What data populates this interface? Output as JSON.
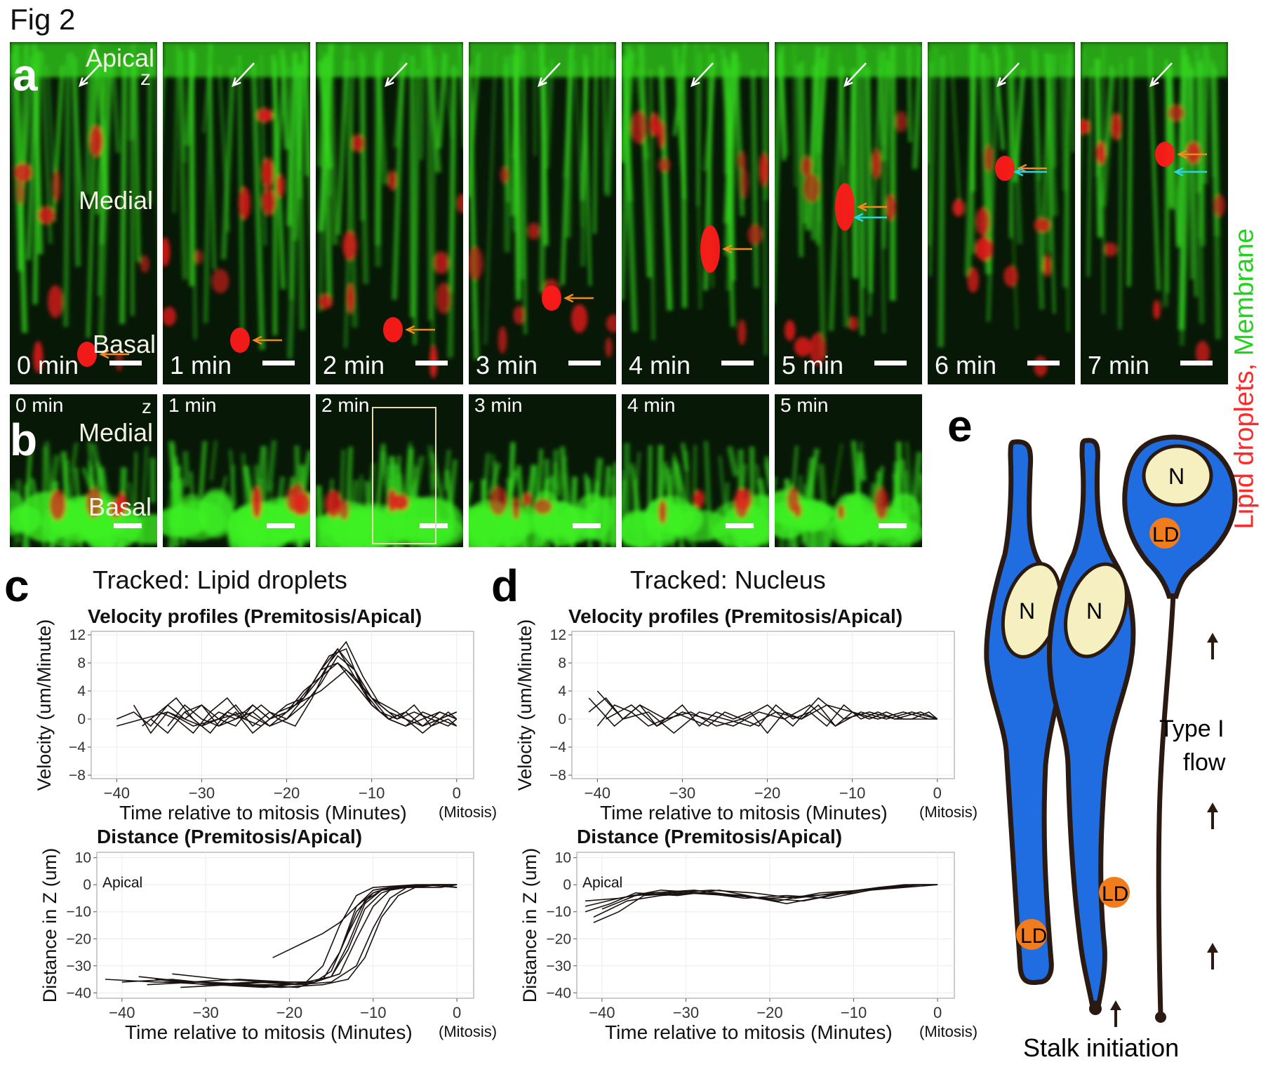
{
  "figure_title": "Fig 2",
  "panel_letters": {
    "a": "a",
    "b": "b",
    "c": "c",
    "d": "d",
    "e": "e"
  },
  "panel_a": {
    "labels": {
      "apical": "Apical",
      "z": "z",
      "medial": "Medial",
      "basal": "Basal"
    },
    "times": [
      "0 min",
      "1 min",
      "2 min",
      "3 min",
      "4 min",
      "5 min",
      "6 min",
      "7 min"
    ],
    "side_label": {
      "red": "Lipid droplets,",
      "green": "Membrane"
    },
    "colors": {
      "lipid": "#ff1a1a",
      "membrane": "#2fdc1e",
      "orange_arrow": "#f08a1c",
      "cyan_arrow": "#2ad4e6",
      "white_arrow": "#ffffff"
    }
  },
  "panel_b": {
    "labels": {
      "z": "z",
      "medial": "Medial",
      "basal": "Basal"
    },
    "times": [
      "0 min",
      "1 min",
      "2 min",
      "3 min",
      "4 min",
      "5 min"
    ]
  },
  "panel_c": {
    "tracked": "Tracked: Lipid droplets"
  },
  "panel_d": {
    "tracked": "Tracked: Nucleus"
  },
  "chart_data": [
    {
      "id": "c-velocity",
      "type": "line",
      "title": "Velocity profiles (Premitosis/Apical)",
      "xlabel": "Time relative to mitosis (Minutes)",
      "xlabel_suffix": "(Mitosis)",
      "ylabel": "Velocity (um/Minute)",
      "xlim": [
        -43,
        2
      ],
      "ylim": [
        -8.5,
        12.5
      ],
      "xticks": [
        -40,
        -30,
        -20,
        -10,
        0
      ],
      "yticks": [
        -8,
        -4,
        0,
        4,
        8,
        12
      ],
      "series": [
        {
          "x": [
            -40,
            -38,
            -36,
            -34,
            -32,
            -30,
            -28,
            -26,
            -24,
            -22,
            -20,
            -18,
            -16,
            -14,
            -12,
            -10,
            -8,
            -6,
            -4,
            -2,
            0
          ],
          "values": [
            0,
            1,
            -1,
            2,
            0,
            -1,
            1,
            0,
            2,
            0,
            1,
            3,
            7,
            10,
            6,
            2,
            0,
            1,
            -1,
            0,
            1
          ]
        },
        {
          "x": [
            -38,
            -36,
            -34,
            -32,
            -30,
            -28,
            -26,
            -24,
            -22,
            -20,
            -18,
            -16,
            -14,
            -12,
            -10,
            -8,
            -6,
            -4,
            -2,
            0
          ],
          "values": [
            2,
            -2,
            1,
            0,
            2,
            -1,
            0,
            1,
            -1,
            0,
            2,
            5,
            9,
            7,
            3,
            1,
            0,
            -1,
            1,
            0
          ]
        },
        {
          "x": [
            -37,
            -35,
            -33,
            -31,
            -29,
            -27,
            -25,
            -23,
            -21,
            -19,
            -17,
            -15,
            -13,
            -11,
            -9,
            -7,
            -5,
            -3,
            -1,
            0
          ],
          "values": [
            -1,
            1,
            3,
            0,
            -2,
            1,
            0,
            2,
            0,
            -1,
            3,
            8,
            11,
            6,
            2,
            0,
            1,
            0,
            -1,
            0
          ]
        },
        {
          "x": [
            -36,
            -34,
            -32,
            -30,
            -28,
            -26,
            -24,
            -22,
            -20,
            -18,
            -16,
            -14,
            -12,
            -10,
            -8,
            -6,
            -4,
            -2,
            0
          ],
          "values": [
            0,
            -2,
            1,
            2,
            0,
            -1,
            2,
            0,
            1,
            4,
            6,
            8,
            5,
            2,
            0,
            -1,
            0,
            1,
            0
          ]
        },
        {
          "x": [
            -35,
            -33,
            -31,
            -29,
            -27,
            -25,
            -23,
            -21,
            -19,
            -17,
            -15,
            -13,
            -11,
            -9,
            -7,
            -5,
            -3,
            -1,
            0
          ],
          "values": [
            1,
            0,
            -2,
            1,
            3,
            0,
            -1,
            1,
            2,
            5,
            9,
            10,
            4,
            1,
            0,
            2,
            -1,
            0,
            -1
          ]
        },
        {
          "x": [
            -34,
            -32,
            -30,
            -28,
            -26,
            -24,
            -22,
            -20,
            -18,
            -16,
            -14,
            -12,
            -10,
            -8,
            -6,
            -4,
            -2,
            0
          ],
          "values": [
            -1,
            2,
            0,
            -1,
            1,
            -2,
            0,
            2,
            3,
            7,
            8,
            6,
            3,
            0,
            1,
            -1,
            0,
            1
          ]
        },
        {
          "x": [
            -40,
            -37,
            -34,
            -31,
            -28,
            -25,
            -22,
            -19,
            -16,
            -13,
            -10,
            -7,
            -4,
            -1,
            0
          ],
          "values": [
            -1,
            0,
            1,
            -1,
            0,
            1,
            -1,
            2,
            4,
            7,
            3,
            1,
            -2,
            1,
            0
          ]
        },
        {
          "x": [
            -32,
            -30,
            -28,
            -26,
            -24,
            -22,
            -20,
            -18,
            -16,
            -14,
            -12,
            -10,
            -8,
            -6,
            -4,
            -2,
            0
          ],
          "values": [
            1,
            -1,
            0,
            2,
            -1,
            1,
            0,
            3,
            6,
            10,
            7,
            2,
            0,
            -1,
            1,
            0,
            -1
          ]
        }
      ]
    },
    {
      "id": "c-distance",
      "type": "line",
      "title": "Distance (Premitosis/Apical)",
      "annotation": "Apical",
      "xlabel": "Time relative to mitosis (Minutes)",
      "xlabel_suffix": "(Mitosis)",
      "ylabel": "Distance in Z (um)",
      "xlim": [
        -43,
        2
      ],
      "ylim": [
        -42,
        12
      ],
      "xticks": [
        -40,
        -30,
        -20,
        -10,
        0
      ],
      "yticks": [
        -40,
        -30,
        -20,
        -10,
        0,
        10
      ],
      "series": [
        {
          "x": [
            -42,
            -36,
            -30,
            -24,
            -20,
            -18,
            -16,
            -14,
            -12,
            -10,
            -5,
            0
          ],
          "values": [
            -35,
            -36,
            -36,
            -37,
            -37,
            -36,
            -30,
            -15,
            -4,
            -1,
            0,
            0
          ]
        },
        {
          "x": [
            -40,
            -34,
            -28,
            -22,
            -18,
            -16,
            -14,
            -12,
            -10,
            -8,
            -4,
            0
          ],
          "values": [
            -36,
            -35,
            -37,
            -36,
            -37,
            -35,
            -25,
            -8,
            -2,
            -1,
            0,
            -1
          ]
        },
        {
          "x": [
            -38,
            -32,
            -26,
            -20,
            -17,
            -15,
            -13,
            -11,
            -9,
            -6,
            -2,
            0
          ],
          "values": [
            -34,
            -36,
            -35,
            -36,
            -36,
            -32,
            -18,
            -6,
            -2,
            -1,
            0,
            0
          ]
        },
        {
          "x": [
            -37,
            -31,
            -25,
            -19,
            -16,
            -14,
            -12,
            -10,
            -8,
            -4,
            0
          ],
          "values": [
            -37,
            -36,
            -37,
            -38,
            -35,
            -25,
            -10,
            -3,
            -1,
            0,
            -1
          ]
        },
        {
          "x": [
            -36,
            -30,
            -24,
            -18,
            -15,
            -13,
            -11,
            -9,
            -7,
            -3,
            0
          ],
          "values": [
            -35,
            -37,
            -36,
            -37,
            -34,
            -24,
            -9,
            -3,
            -1,
            0,
            0
          ]
        },
        {
          "x": [
            -35,
            -29,
            -23,
            -17,
            -14,
            -12,
            -10,
            -8,
            -6,
            -2,
            0
          ],
          "values": [
            -36,
            -37,
            -38,
            -36,
            -33,
            -20,
            -8,
            -2,
            -1,
            -1,
            0
          ]
        },
        {
          "x": [
            -34,
            -28,
            -22,
            -18,
            -15,
            -13,
            -11,
            -9,
            -7,
            -3,
            0
          ],
          "values": [
            -33,
            -35,
            -36,
            -36,
            -34,
            -22,
            -7,
            -2,
            -1,
            0,
            0
          ]
        },
        {
          "x": [
            -22,
            -20,
            -18,
            -16,
            -14,
            -12,
            -10,
            -8,
            -5,
            0
          ],
          "values": [
            -27,
            -24,
            -21,
            -18,
            -14,
            -8,
            -3,
            -1,
            0,
            0
          ]
        },
        {
          "x": [
            -33,
            -27,
            -21,
            -16,
            -13,
            -11,
            -9,
            -7,
            -5,
            -2,
            0
          ],
          "values": [
            -38,
            -37,
            -38,
            -37,
            -35,
            -27,
            -12,
            -4,
            -1,
            0,
            -1
          ]
        },
        {
          "x": [
            -30,
            -24,
            -19,
            -15,
            -12,
            -10,
            -8,
            -6,
            -3,
            0
          ],
          "values": [
            -37,
            -36,
            -37,
            -36,
            -30,
            -16,
            -5,
            -1,
            0,
            0
          ]
        }
      ]
    },
    {
      "id": "d-velocity",
      "type": "line",
      "title": "Velocity profiles (Premitosis/Apical)",
      "xlabel": "Time relative to mitosis (Minutes)",
      "xlabel_suffix": "(Mitosis)",
      "ylabel": "Velocity (um/Minute)",
      "xlim": [
        -43,
        2
      ],
      "ylim": [
        -8.5,
        12.5
      ],
      "xticks": [
        -40,
        -30,
        -20,
        -10,
        0
      ],
      "yticks": [
        -8,
        -4,
        0,
        4,
        8,
        12
      ],
      "series": [
        {
          "x": [
            -41,
            -39,
            -37,
            -35,
            -33,
            -31,
            -29,
            -27,
            -25,
            -23,
            -21,
            -19,
            -17,
            -15,
            -13,
            -11,
            -9,
            -7,
            -5,
            -3,
            -1,
            0
          ],
          "values": [
            1,
            3,
            0,
            2,
            -1,
            1,
            0,
            -1,
            1,
            0,
            -1,
            2,
            0,
            1,
            -1,
            2,
            0,
            1,
            0,
            0,
            1,
            0
          ]
        },
        {
          "x": [
            -40,
            -38,
            -36,
            -34,
            -32,
            -30,
            -28,
            -26,
            -24,
            -22,
            -20,
            -18,
            -16,
            -14,
            -12,
            -10,
            -8,
            -6,
            -4,
            -2,
            0
          ],
          "values": [
            -1,
            2,
            1,
            -1,
            0,
            2,
            -1,
            1,
            0,
            1,
            -2,
            1,
            0,
            2,
            -1,
            1,
            0,
            1,
            0,
            0,
            0
          ]
        },
        {
          "x": [
            -41,
            -38,
            -35,
            -32,
            -29,
            -26,
            -23,
            -20,
            -17,
            -14,
            -11,
            -8,
            -5,
            -2,
            0
          ],
          "values": [
            3,
            -1,
            2,
            0,
            1,
            -1,
            0,
            2,
            -1,
            3,
            0,
            1,
            0,
            1,
            0
          ]
        },
        {
          "x": [
            -39,
            -36,
            -33,
            -30,
            -27,
            -24,
            -21,
            -18,
            -15,
            -12,
            -9,
            -6,
            -3,
            0
          ],
          "values": [
            0,
            2,
            -1,
            1,
            0,
            -1,
            1,
            0,
            2,
            -1,
            1,
            0,
            1,
            0
          ]
        },
        {
          "x": [
            -40,
            -37,
            -34,
            -31,
            -28,
            -25,
            -22,
            -19,
            -16,
            -13,
            -10,
            -7,
            -4,
            -1,
            0
          ],
          "values": [
            4,
            0,
            1,
            -2,
            1,
            0,
            -1,
            1,
            0,
            2,
            1,
            0,
            1,
            0,
            0
          ]
        }
      ]
    },
    {
      "id": "d-distance",
      "type": "line",
      "title": "Distance (Premitosis/Apical)",
      "annotation": "Apical",
      "xlabel": "Time relative to mitosis (Minutes)",
      "xlabel_suffix": "(Mitosis)",
      "ylabel": "Distance in Z (um)",
      "xlim": [
        -43,
        2
      ],
      "ylim": [
        -42,
        12
      ],
      "xticks": [
        -40,
        -30,
        -20,
        -10,
        0
      ],
      "yticks": [
        -40,
        -30,
        -20,
        -10,
        0,
        10
      ],
      "series": [
        {
          "x": [
            -41,
            -38,
            -35,
            -30,
            -25,
            -20,
            -15,
            -10,
            -6,
            -3,
            0
          ],
          "values": [
            -14,
            -10,
            -4,
            -3,
            -4,
            -5,
            -4,
            -3,
            -1,
            0,
            0
          ]
        },
        {
          "x": [
            -42,
            -39,
            -36,
            -31,
            -26,
            -21,
            -16,
            -11,
            -7,
            -4,
            0
          ],
          "values": [
            -10,
            -7,
            -3,
            -4,
            -2,
            -5,
            -6,
            -3,
            -1,
            0,
            0
          ]
        },
        {
          "x": [
            -42,
            -38,
            -34,
            -29,
            -24,
            -19,
            -14,
            -9,
            -5,
            -2,
            0
          ],
          "values": [
            -8,
            -5,
            -3,
            -2,
            -4,
            -6,
            -3,
            -2,
            -1,
            0,
            0
          ]
        },
        {
          "x": [
            -41,
            -37,
            -33,
            -28,
            -23,
            -18,
            -13,
            -8,
            -4,
            0
          ],
          "values": [
            -12,
            -6,
            -4,
            -3,
            -5,
            -4,
            -5,
            -2,
            -1,
            0
          ]
        },
        {
          "x": [
            -40,
            -36,
            -32,
            -27,
            -22,
            -17,
            -12,
            -7,
            -3,
            0
          ],
          "values": [
            -9,
            -4,
            -3,
            -2,
            -3,
            -5,
            -3,
            -1,
            0,
            0
          ]
        },
        {
          "x": [
            -42,
            -38,
            -33,
            -28,
            -23,
            -18,
            -13,
            -9,
            -4,
            0
          ],
          "values": [
            -6,
            -5,
            -2,
            -3,
            -4,
            -7,
            -4,
            -2,
            0,
            0
          ]
        }
      ]
    }
  ],
  "panel_e": {
    "nucleus": "N",
    "lipid": "LD",
    "flow_label": [
      "Type I",
      "flow"
    ],
    "stalk_label": "Stalk initiation",
    "colors": {
      "cell": "#1f6de0",
      "outline": "#2a1a12",
      "nucleus": "#f6f0c0",
      "lipid": "#f07c1e"
    }
  }
}
